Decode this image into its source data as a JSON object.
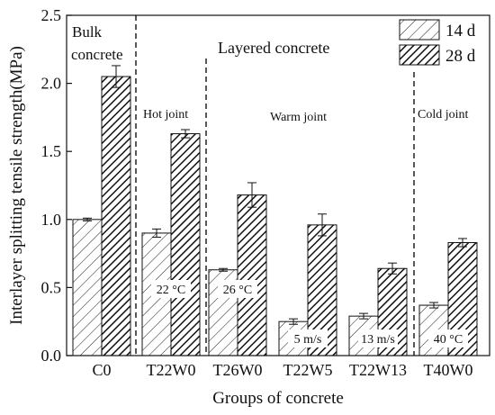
{
  "chart_data": {
    "type": "bar",
    "xlabel": "Groups of concrete",
    "ylabel": "Interlayer splitting tensile strength(MPa)",
    "ylim": [
      0,
      2.5
    ],
    "yticks": [
      "0.0",
      "0.5",
      "1.0",
      "1.5",
      "2.0",
      "2.5"
    ],
    "categories": [
      "C0",
      "T22W0",
      "T26W0",
      "T22W5",
      "T22W13",
      "T40W0"
    ],
    "series": [
      {
        "name": "14 d",
        "values": [
          1.0,
          0.9,
          0.63,
          0.25,
          0.29,
          0.37
        ],
        "errors": [
          0.01,
          0.03,
          0.01,
          0.02,
          0.02,
          0.02
        ],
        "pattern": "light-hatch"
      },
      {
        "name": "28 d",
        "values": [
          2.05,
          1.63,
          1.18,
          0.96,
          0.64,
          0.83
        ],
        "errors": [
          0.08,
          0.03,
          0.09,
          0.08,
          0.04,
          0.03
        ],
        "pattern": "dense-hatch"
      }
    ],
    "legend_position": "top-right",
    "grid": false,
    "annotations": {
      "bulk_label_line1": "Bulk",
      "bulk_label_line2": "concrete",
      "layered_label": "Layered concrete",
      "zones": [
        "Hot joint",
        "Warm joint",
        "Cold joint"
      ],
      "conditions": [
        "22 °C",
        "26 °C",
        "5 m/s",
        "13 m/s",
        "40 °C"
      ]
    }
  }
}
